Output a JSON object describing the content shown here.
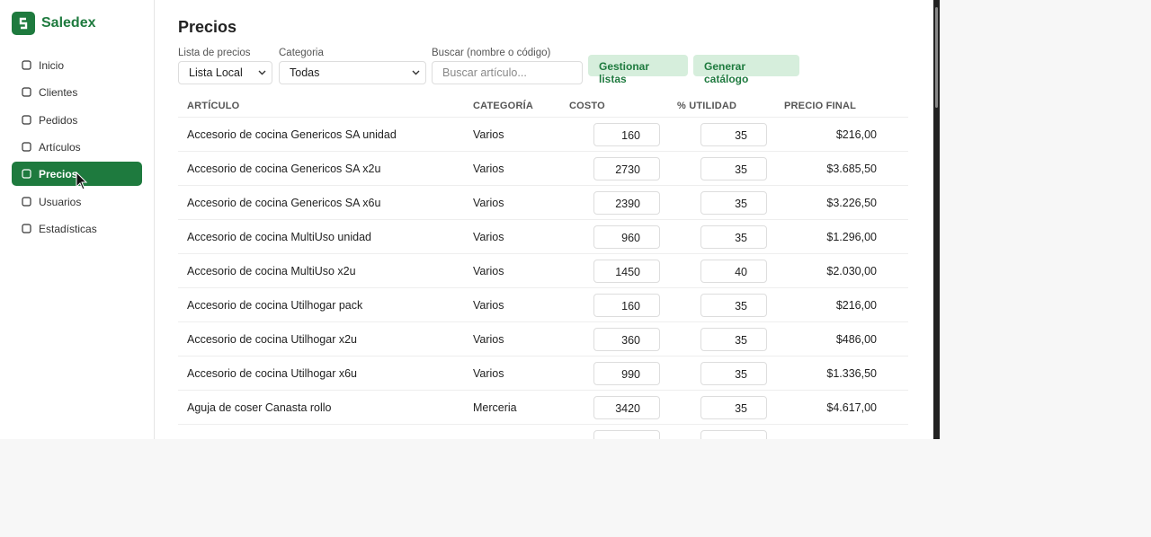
{
  "sidebar": {
    "brand": "Saledex",
    "nav": [
      "Inicio",
      "Clientes",
      "Pedidos",
      "Artículos",
      "Precios",
      "Usuarios",
      "Estadísticas"
    ]
  },
  "main": {
    "title": "Precios",
    "filters": [
      {
        "label": "Lista de precios",
        "value": "Lista Local"
      },
      {
        "label": "Categoria",
        "value": "Todas"
      },
      {
        "label": "Buscar (nombre o código)",
        "placeholder": "Buscar artículo..."
      }
    ],
    "buttons": [
      "Gestionar listas",
      "Generar catálogo"
    ],
    "table": {
      "headers": [
        "ARTÍCULO",
        "CATEGORÍA",
        "COSTO",
        "% UTILIDAD",
        "PRECIO FINAL"
      ],
      "rows": [
        [
          "Accesorio de cocina Genericos SA unidad",
          "Varios",
          160,
          35,
          "$216,00"
        ],
        [
          "Accesorio de cocina Genericos SA x2u",
          "Varios",
          2730,
          35,
          "$3.685,50"
        ],
        [
          "Accesorio de cocina Genericos SA x6u",
          "Varios",
          2390,
          35,
          "$3.226,50"
        ],
        [
          "Accesorio de cocina MultiUso unidad",
          "Varios",
          960,
          35,
          "$1.296,00"
        ],
        [
          "Accesorio de cocina MultiUso x2u",
          "Varios",
          1450,
          40,
          "$2.030,00"
        ],
        [
          "Accesorio de cocina Utilhogar pack",
          "Varios",
          160,
          35,
          "$216,00"
        ],
        [
          "Accesorio de cocina Utilhogar x2u",
          "Varios",
          360,
          35,
          "$486,00"
        ],
        [
          "Accesorio de cocina Utilhogar x6u",
          "Varios",
          990,
          35,
          "$1.336,50"
        ],
        [
          "Aguja de coser Canasta rollo",
          "Merceria",
          3420,
          35,
          "$4.617,00"
        ]
      ]
    }
  }
}
